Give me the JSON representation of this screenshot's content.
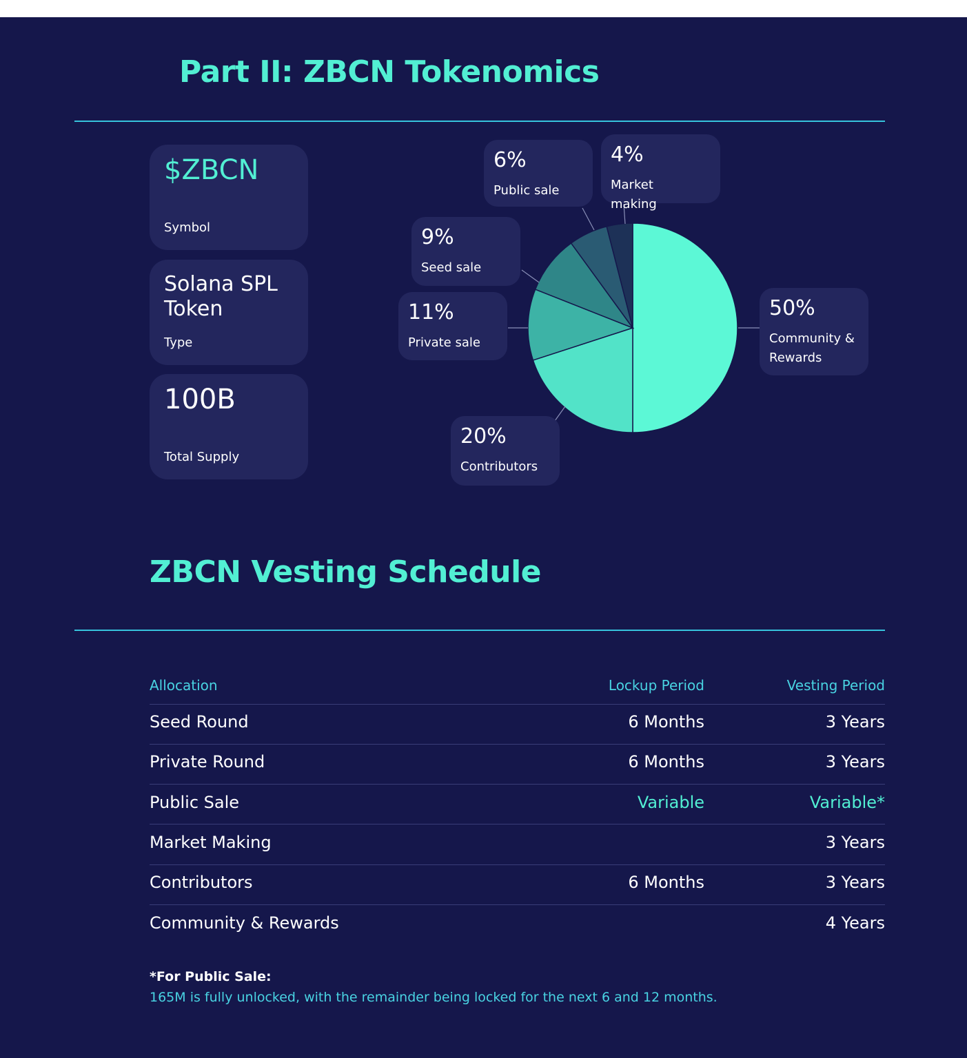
{
  "header": {
    "title": "Part II: ZBCN Tokenomics"
  },
  "info_cards": [
    {
      "value": "$ZBCN",
      "label": "Symbol"
    },
    {
      "value": "Solana SPL Token",
      "label": "Type"
    },
    {
      "value": "100B",
      "label": "Total Supply"
    }
  ],
  "chart_data": {
    "type": "pie",
    "categories": [
      "Community & Rewards",
      "Contributors",
      "Private sale",
      "Seed sale",
      "Public sale",
      "Market making"
    ],
    "values": [
      50,
      20,
      11,
      9,
      6,
      4
    ],
    "value_labels": [
      "50%",
      "20%",
      "11%",
      "9%",
      "6%",
      "4%"
    ],
    "colors": [
      "#5cf8d6",
      "#52e3c8",
      "#3db3a6",
      "#2f8688",
      "#2a5b73",
      "#1d3157"
    ]
  },
  "vesting": {
    "title": "ZBCN Vesting Schedule",
    "columns": [
      "Allocation",
      "Lockup Period",
      "Vesting Period"
    ],
    "rows": [
      [
        "Seed Round",
        "6 Months",
        "3 Years"
      ],
      [
        "Private Round",
        "6 Months",
        "3 Years"
      ],
      [
        "Public Sale",
        "Variable",
        "Variable*"
      ],
      [
        "Market Making",
        null,
        "3 Years"
      ],
      [
        "Contributors",
        "6 Months",
        "3 Years"
      ],
      [
        "Community & Rewards",
        null,
        "4 Years"
      ]
    ],
    "footnote_title": "*For Public Sale:",
    "footnote": "165M is fully unlocked, with the remainder being locked for the next 6 and 12 months."
  }
}
